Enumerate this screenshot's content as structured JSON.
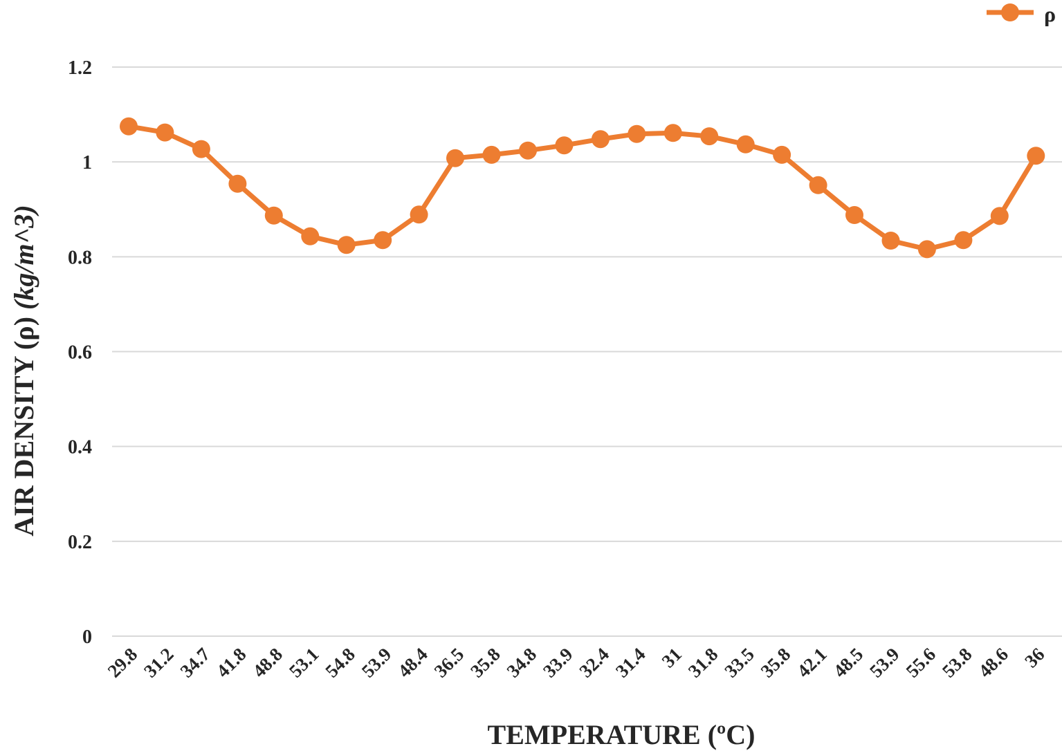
{
  "chart_data": {
    "type": "line",
    "title": "",
    "xlabel": "TEMPERATURE (ºC)",
    "ylabel": "AIR DENSITY (ρ) (kg/m^3)",
    "ylim": [
      0,
      1.2
    ],
    "yticks": [
      "0",
      "0.2",
      "0.4",
      "0.6",
      "0.8",
      "1",
      "1.2"
    ],
    "ytick_values": [
      0,
      0.2,
      0.4,
      0.6,
      0.8,
      1.0,
      1.2
    ],
    "grid": true,
    "legend_position": "top-right",
    "categories": [
      "29.8",
      "31.2",
      "34.7",
      "41.8",
      "48.8",
      "53.1",
      "54.8",
      "53.9",
      "48.4",
      "36.5",
      "35.8",
      "34.8",
      "33.9",
      "32.4",
      "31.4",
      "31",
      "31.8",
      "33.5",
      "35.8",
      "42.1",
      "48.5",
      "53.9",
      "55.6",
      "53.8",
      "48.6",
      "36"
    ],
    "series": [
      {
        "name": "ρ",
        "color": "#ED7D31",
        "values": [
          1.075,
          1.062,
          1.027,
          0.954,
          0.887,
          0.843,
          0.825,
          0.835,
          0.889,
          1.008,
          1.015,
          1.024,
          1.035,
          1.048,
          1.059,
          1.061,
          1.054,
          1.037,
          1.015,
          0.951,
          0.888,
          0.834,
          0.816,
          0.835,
          0.886,
          1.013
        ]
      }
    ]
  }
}
